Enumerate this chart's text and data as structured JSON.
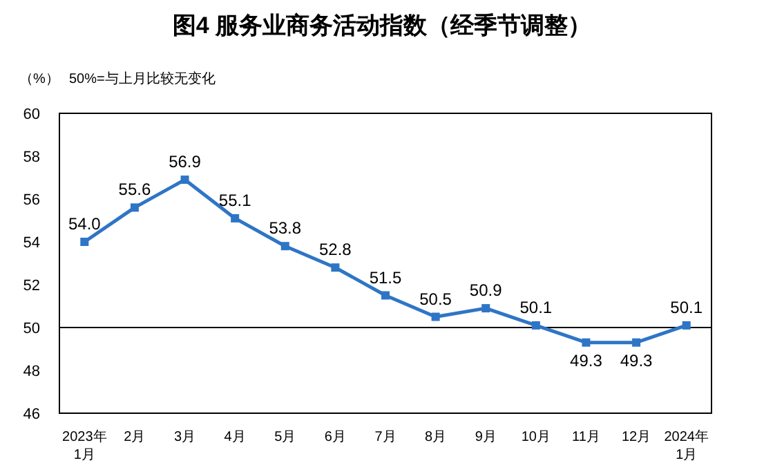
{
  "chart_data": {
    "type": "line",
    "title": "图4  服务业商务活动指数（经季节调整）",
    "ylabel": "（%）",
    "annotations": [
      "50%=与上月比较无变化"
    ],
    "categories": [
      "2023年\n1月",
      "2月",
      "3月",
      "4月",
      "5月",
      "6月",
      "7月",
      "8月",
      "9月",
      "10月",
      "11月",
      "12月",
      "2024年\n1月"
    ],
    "series": [
      {
        "color": "#2e75c6",
        "values": [
          54.0,
          55.6,
          56.9,
          55.1,
          53.8,
          52.8,
          51.5,
          50.5,
          50.9,
          50.1,
          49.3,
          49.3,
          50.1
        ],
        "value_labels": [
          "54.0",
          "55.6",
          "56.9",
          "55.1",
          "53.8",
          "52.8",
          "51.5",
          "50.5",
          "50.9",
          "50.1",
          "49.3",
          "49.3",
          "50.1"
        ]
      }
    ],
    "ylim": [
      46,
      60
    ],
    "yticks": [
      46,
      48,
      50,
      52,
      54,
      56,
      58,
      60
    ],
    "marker": "square",
    "line_style": "solid",
    "grid": false,
    "ref_lines": [
      {
        "axis": "y",
        "value": 50,
        "color": "#000000"
      }
    ]
  }
}
